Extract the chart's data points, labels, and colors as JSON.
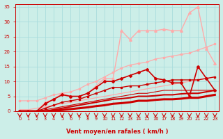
{
  "bg_color": "#cceee8",
  "grid_color": "#aadddd",
  "xlabel": "Vent moyen/en rafales ( km/h )",
  "xlabel_color": "#cc0000",
  "tick_color": "#cc0000",
  "xlim": [
    -0.5,
    23.5
  ],
  "ylim": [
    0,
    36
  ],
  "xticks": [
    0,
    1,
    2,
    3,
    4,
    5,
    6,
    7,
    8,
    9,
    10,
    11,
    12,
    13,
    14,
    15,
    16,
    17,
    18,
    19,
    20,
    21,
    22,
    23
  ],
  "yticks": [
    0,
    5,
    10,
    15,
    20,
    25,
    30,
    35
  ],
  "series": [
    {
      "x": [
        0,
        1,
        2,
        3,
        4,
        5,
        6,
        7,
        8,
        9,
        10,
        11,
        12,
        13,
        14,
        15,
        16,
        17,
        18,
        19,
        20,
        21,
        22,
        23
      ],
      "y": [
        0.5,
        0.5,
        1.0,
        1.5,
        2.0,
        2.5,
        3.0,
        3.5,
        4.0,
        4.5,
        5.0,
        5.5,
        6.0,
        6.5,
        7.0,
        7.5,
        8.0,
        8.5,
        9.0,
        9.5,
        10.0,
        10.5,
        11.0,
        11.5
      ],
      "color": "#ffaaaa",
      "lw": 0.9,
      "marker": null
    },
    {
      "x": [
        0,
        1,
        2,
        3,
        4,
        5,
        6,
        7,
        8,
        9,
        10,
        11,
        12,
        13,
        14,
        15,
        16,
        17,
        18,
        19,
        20,
        21,
        22,
        23
      ],
      "y": [
        3.5,
        3.5,
        3.5,
        4.5,
        5.5,
        6.0,
        6.5,
        7.5,
        9.0,
        10.0,
        11.5,
        13.0,
        14.5,
        15.5,
        16.0,
        16.5,
        17.5,
        18.0,
        18.5,
        19.0,
        19.5,
        20.5,
        21.5,
        22.5
      ],
      "color": "#ffaaaa",
      "lw": 0.9,
      "marker": "s",
      "ms": 2
    },
    {
      "x": [
        0,
        1,
        2,
        3,
        4,
        5,
        6,
        7,
        8,
        9,
        10,
        11,
        12,
        13,
        14,
        15,
        16,
        17,
        18,
        19,
        20,
        21,
        22,
        23
      ],
      "y": [
        0,
        0,
        0,
        3,
        4,
        6,
        5,
        5,
        6,
        8.5,
        11,
        11,
        27,
        24,
        27,
        27,
        27,
        27.5,
        27,
        27,
        33,
        35,
        21,
        16
      ],
      "color": "#ffaaaa",
      "lw": 1.0,
      "marker": "^",
      "ms": 2.5
    },
    {
      "x": [
        0,
        1,
        2,
        3,
        4,
        5,
        6,
        7,
        8,
        9,
        10,
        11,
        12,
        13,
        14,
        15,
        16,
        17,
        18,
        19,
        20,
        21,
        22,
        23
      ],
      "y": [
        0,
        0,
        0,
        2.5,
        4,
        5.5,
        5,
        5,
        6,
        8,
        10,
        10,
        11,
        12,
        13,
        14,
        11,
        10.5,
        9.5,
        9.5,
        5,
        15,
        11,
        7
      ],
      "color": "#cc0000",
      "lw": 1.2,
      "marker": "D",
      "ms": 2
    },
    {
      "x": [
        0,
        1,
        2,
        3,
        4,
        5,
        6,
        7,
        8,
        9,
        10,
        11,
        12,
        13,
        14,
        15,
        16,
        17,
        18,
        19,
        20,
        21,
        22,
        23
      ],
      "y": [
        0,
        0,
        0,
        1,
        2,
        3,
        3.5,
        4,
        5,
        6,
        7,
        8,
        8,
        8.5,
        8.5,
        9,
        9.5,
        10,
        10.5,
        10.5,
        10.5,
        10.5,
        11,
        11.5
      ],
      "color": "#cc0000",
      "lw": 1.0,
      "marker": "s",
      "ms": 2
    },
    {
      "x": [
        0,
        1,
        2,
        3,
        4,
        5,
        6,
        7,
        8,
        9,
        10,
        11,
        12,
        13,
        14,
        15,
        16,
        17,
        18,
        19,
        20,
        21,
        22,
        23
      ],
      "y": [
        0,
        0,
        0,
        0.5,
        1.0,
        1.5,
        2,
        2.5,
        3,
        3.5,
        4,
        4.5,
        5,
        5.5,
        6,
        6,
        6.5,
        7,
        7,
        7,
        7,
        7,
        7,
        7
      ],
      "color": "#cc0000",
      "lw": 0.8,
      "marker": null
    },
    {
      "x": [
        0,
        1,
        2,
        3,
        4,
        5,
        6,
        7,
        8,
        9,
        10,
        11,
        12,
        13,
        14,
        15,
        16,
        17,
        18,
        19,
        20,
        21,
        22,
        23
      ],
      "y": [
        0,
        0,
        0,
        0,
        0.5,
        1,
        1.5,
        2,
        2.5,
        3,
        3.5,
        4,
        4.2,
        4.5,
        5,
        5,
        5.2,
        5.5,
        5.5,
        5.8,
        6,
        6,
        6.5,
        7
      ],
      "color": "#cc0000",
      "lw": 1.5,
      "marker": null
    },
    {
      "x": [
        0,
        1,
        2,
        3,
        4,
        5,
        6,
        7,
        8,
        9,
        10,
        11,
        12,
        13,
        14,
        15,
        16,
        17,
        18,
        19,
        20,
        21,
        22,
        23
      ],
      "y": [
        0,
        0,
        0,
        0,
        0.2,
        0.4,
        0.7,
        1.0,
        1.3,
        1.7,
        2.0,
        2.5,
        2.7,
        3.0,
        3.5,
        3.5,
        3.8,
        4.0,
        4.0,
        4.2,
        4.5,
        4.5,
        5.0,
        5.5
      ],
      "color": "#cc0000",
      "lw": 2.2,
      "marker": null
    }
  ]
}
